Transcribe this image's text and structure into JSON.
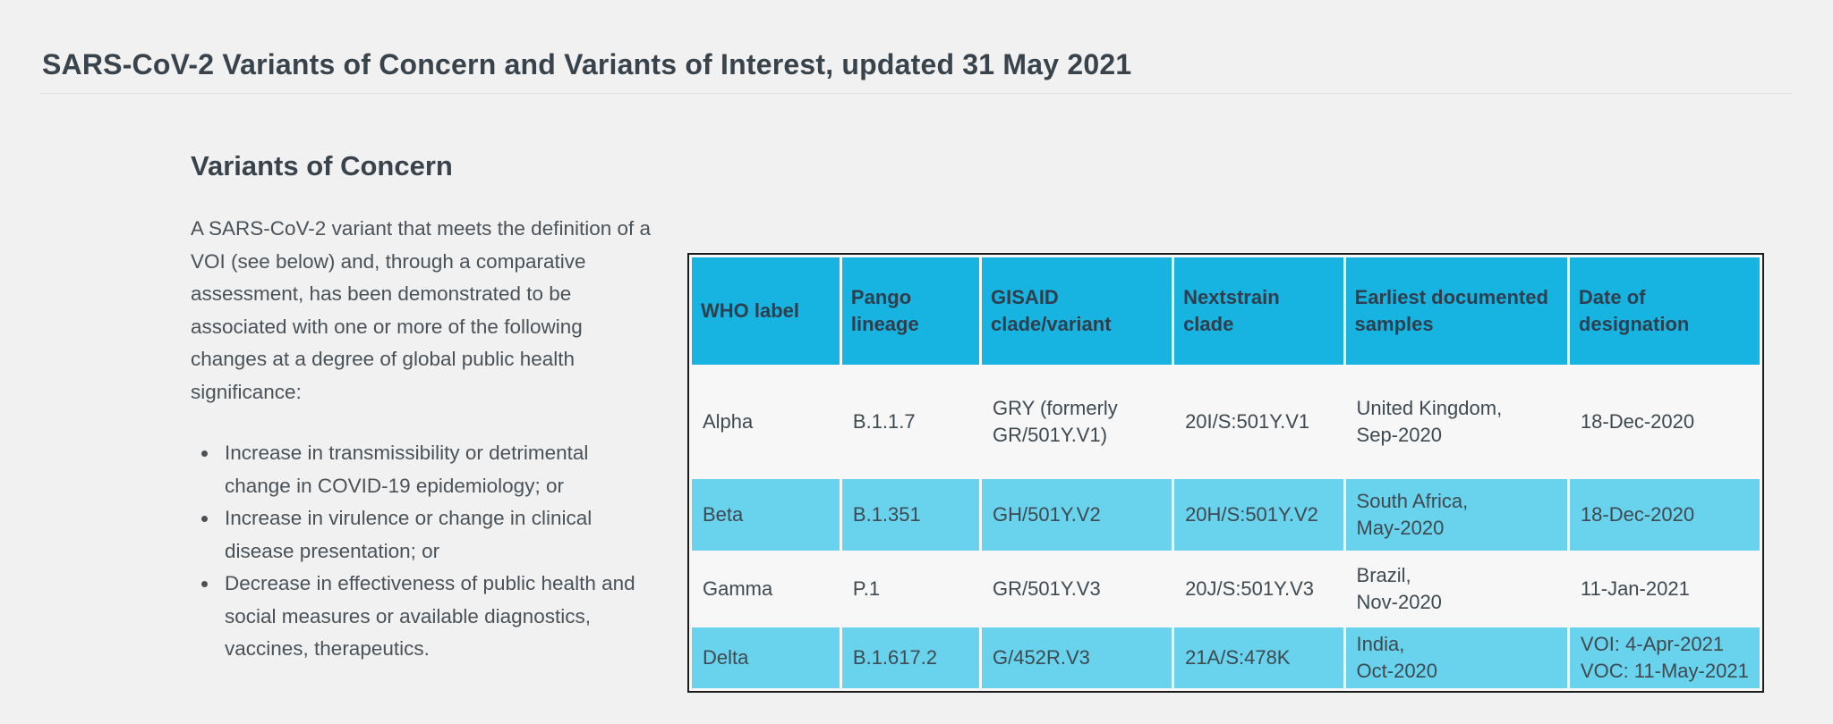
{
  "page": {
    "title": "SARS-CoV-2 Variants of Concern and Variants of Interest, updated 31 May 2021"
  },
  "section": {
    "heading": "Variants of Concern",
    "intro": "A SARS-CoV-2 variant that meets the definition of a VOI (see below) and, through a comparative assessment, has been demonstrated to be associated with one or more of the following changes at a degree of global public health significance:",
    "bullets": [
      "Increase in transmissibility or detrimental change in COVID-19 epidemiology; or",
      "Increase in virulence or change in clinical disease presentation; or",
      "Decrease in effectiveness of public health and social measures or available diagnostics, vaccines, therapeutics."
    ]
  },
  "table": {
    "columns": [
      "WHO label",
      "Pango lineage",
      "GISAID clade/variant",
      "Nextstrain clade",
      "Earliest documented samples",
      "Date of designation"
    ],
    "rows": [
      {
        "who_label": "Alpha",
        "pango_lineage": "B.1.1.7",
        "gisaid": "GRY (formerly GR/501Y.V1)",
        "nextstrain": "20I/S:501Y.V1",
        "earliest_samples": "United Kingdom,\nSep-2020",
        "date_designation": "18-Dec-2020",
        "highlighted": false
      },
      {
        "who_label": "Beta",
        "pango_lineage": "B.1.351",
        "gisaid": "GH/501Y.V2",
        "nextstrain": "20H/S:501Y.V2",
        "earliest_samples": "South Africa,\nMay-2020",
        "date_designation": "18-Dec-2020",
        "highlighted": true
      },
      {
        "who_label": "Gamma",
        "pango_lineage": "P.1",
        "gisaid": "GR/501Y.V3",
        "nextstrain": "20J/S:501Y.V3",
        "earliest_samples": "Brazil,\nNov-2020",
        "date_designation": "11-Jan-2021",
        "highlighted": false
      },
      {
        "who_label": "Delta",
        "pango_lineage": "B.1.617.2",
        "gisaid": "G/452R.V3",
        "nextstrain": "21A/S:478K",
        "earliest_samples": "India,\nOct-2020",
        "date_designation": "VOI: 4-Apr-2021\nVOC: 11-May-2021",
        "highlighted": true
      }
    ]
  },
  "colors": {
    "page_bg": "#f1f1f2",
    "heading_text": "#39434b",
    "body_text": "#4a5258",
    "table_header_bg": "#17b4e2",
    "table_row_highlight_bg": "#69d3ee",
    "table_border": "#1c1c1c",
    "table_text": "#3e4950",
    "divider": "#e3e3e3"
  }
}
